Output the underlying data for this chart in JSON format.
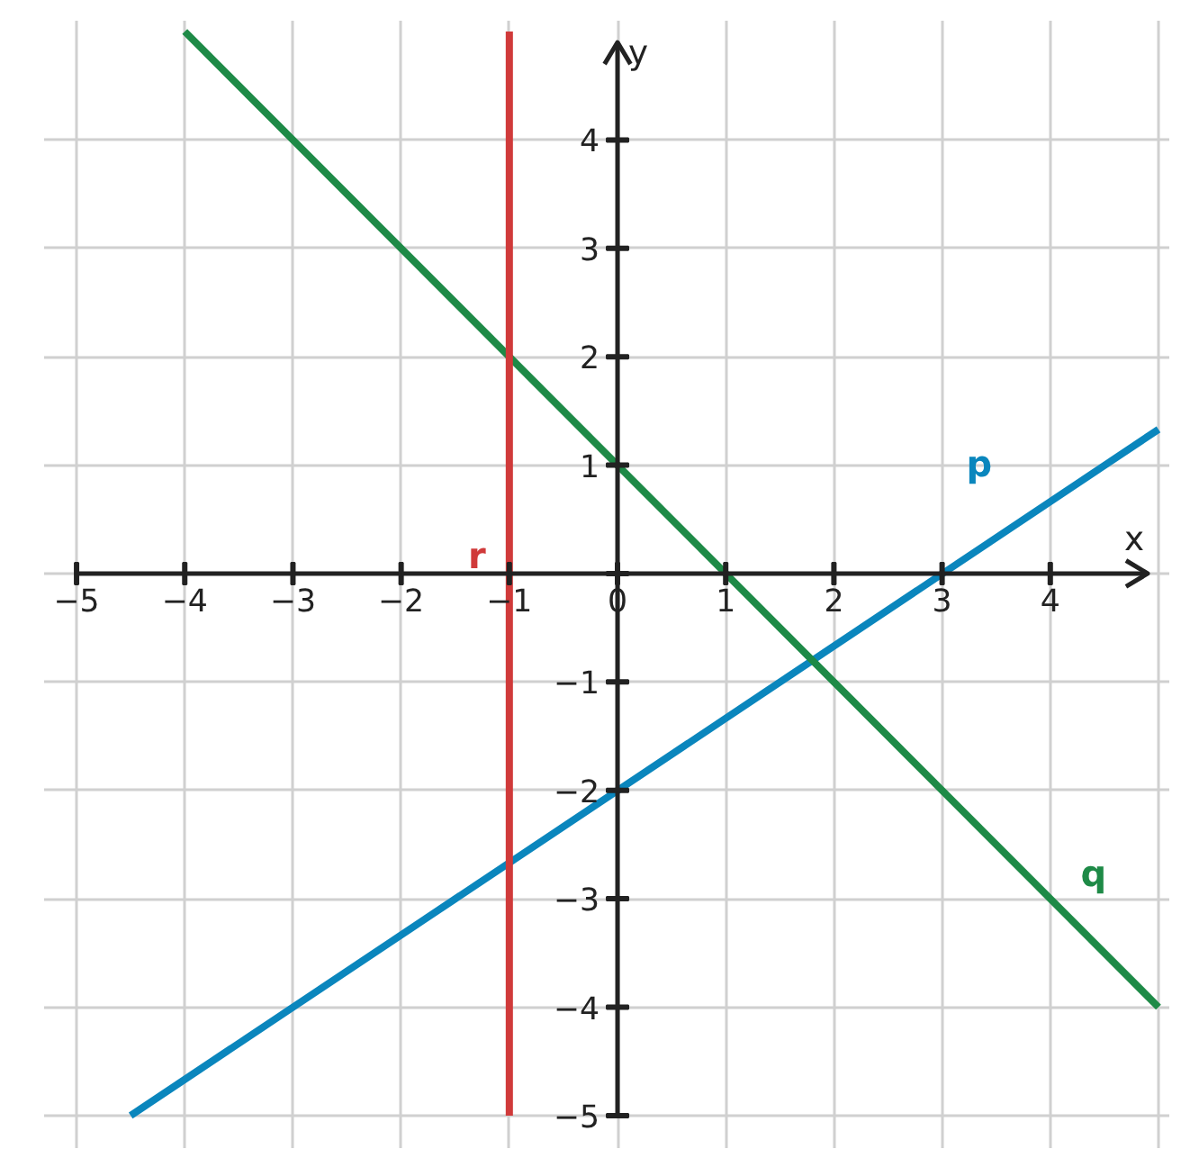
{
  "chart_data": {
    "type": "line",
    "xlabel": "x",
    "ylabel": "y",
    "xlim": [
      -5,
      5
    ],
    "ylim": [
      -5,
      5
    ],
    "xticks": [
      {
        "value": -5,
        "label": "−5"
      },
      {
        "value": -4,
        "label": "−4"
      },
      {
        "value": -3,
        "label": "−3"
      },
      {
        "value": -2,
        "label": "−2"
      },
      {
        "value": -1,
        "label": "−1"
      },
      {
        "value": 0,
        "label": "0"
      },
      1,
      2,
      3,
      4
    ],
    "yticks": [
      {
        "value": -5,
        "label": "−5"
      },
      {
        "value": -4,
        "label": "−4"
      },
      {
        "value": -3,
        "label": "−3"
      },
      {
        "value": -2,
        "label": "−2"
      },
      {
        "value": -1,
        "label": "−1"
      },
      {
        "value": 0,
        "label": null
      },
      1,
      2,
      3,
      4
    ],
    "grid": true,
    "legend": false,
    "marker": "none",
    "line_style": "solid",
    "series": [
      {
        "name": "p",
        "color": "#0a86bd",
        "x": [
          -4.5,
          5
        ],
        "values": [
          -5,
          1.33
        ]
      },
      {
        "name": "q",
        "color": "#1e8a47",
        "x": [
          -4,
          5
        ],
        "values": [
          5,
          -4
        ]
      },
      {
        "name": "r",
        "color": "#d03a3a",
        "x": [
          -1,
          -1
        ],
        "values": [
          -5,
          5
        ]
      }
    ]
  }
}
